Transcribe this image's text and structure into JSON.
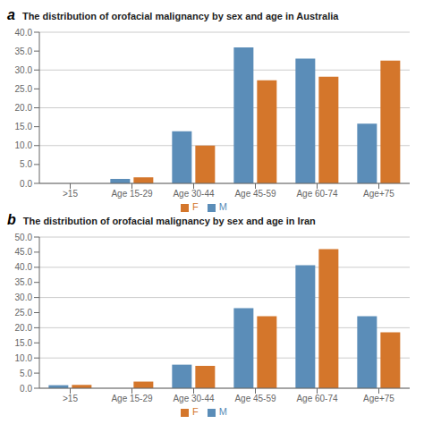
{
  "chart_data": [
    {
      "type": "bar",
      "title": "The distribution of orofacial malignancy by sex and age in Australia",
      "annotations": [
        "a"
      ],
      "categories": [
        ">15",
        "Age 15-29",
        "Age 30-44",
        "Age 45-59",
        "Age 60-74",
        "Age+75"
      ],
      "series": [
        {
          "name": "M",
          "color": "#5b8db8",
          "values": [
            0.0,
            1.2,
            13.8,
            36.0,
            33.0,
            15.8
          ]
        },
        {
          "name": "F",
          "color": "#d4762b",
          "values": [
            0.0,
            1.6,
            10.0,
            27.3,
            28.2,
            32.5
          ]
        }
      ],
      "ylim": [
        0,
        40.0
      ],
      "yticks": [
        {
          "value": 0.0,
          "label": "0.0"
        },
        {
          "value": 5.0,
          "label": "5.0"
        },
        {
          "value": 10.0,
          "label": "10.0"
        },
        {
          "value": 15.0,
          "label": "15.0"
        },
        {
          "value": 20.0,
          "label": "20.0"
        },
        {
          "value": 25.0,
          "label": "25.0"
        },
        {
          "value": 30.0,
          "label": "30.0"
        },
        {
          "value": 35.0,
          "label": "35.0"
        },
        {
          "value": 40.0,
          "label": "40.0"
        }
      ],
      "grid": true,
      "legend": "bottom"
    },
    {
      "type": "bar",
      "title": "The distribution of orofacial malignancy by sex and age in Iran",
      "annotations": [
        "b"
      ],
      "categories": [
        ">15",
        "Age 15-29",
        "Age 30-44",
        "Age 45-59",
        "Age 60-74",
        "Age+75"
      ],
      "series": [
        {
          "name": "M",
          "color": "#5b8db8",
          "values": [
            1.0,
            0.0,
            7.8,
            26.5,
            40.7,
            23.8
          ]
        },
        {
          "name": "F",
          "color": "#d4762b",
          "values": [
            1.1,
            2.2,
            7.4,
            23.8,
            46.0,
            18.5
          ]
        }
      ],
      "ylim": [
        0,
        50.0
      ],
      "yticks": [
        {
          "value": 0.0,
          "label": "0.0"
        },
        {
          "value": 5.0,
          "label": "5.0"
        },
        {
          "value": 10.0,
          "label": "10.0"
        },
        {
          "value": 15.0,
          "label": "15.0"
        },
        {
          "value": 20.0,
          "label": "20.0"
        },
        {
          "value": 25.0,
          "label": "25.0"
        },
        {
          "value": 30.0,
          "label": "30.0"
        },
        {
          "value": 35.0,
          "label": "35.0"
        },
        {
          "value": 40.0,
          "label": "40.0"
        },
        {
          "value": 45.0,
          "label": "45.0"
        },
        {
          "value": 50.0,
          "label": "50.0"
        }
      ],
      "grid": true,
      "legend": "bottom"
    }
  ]
}
